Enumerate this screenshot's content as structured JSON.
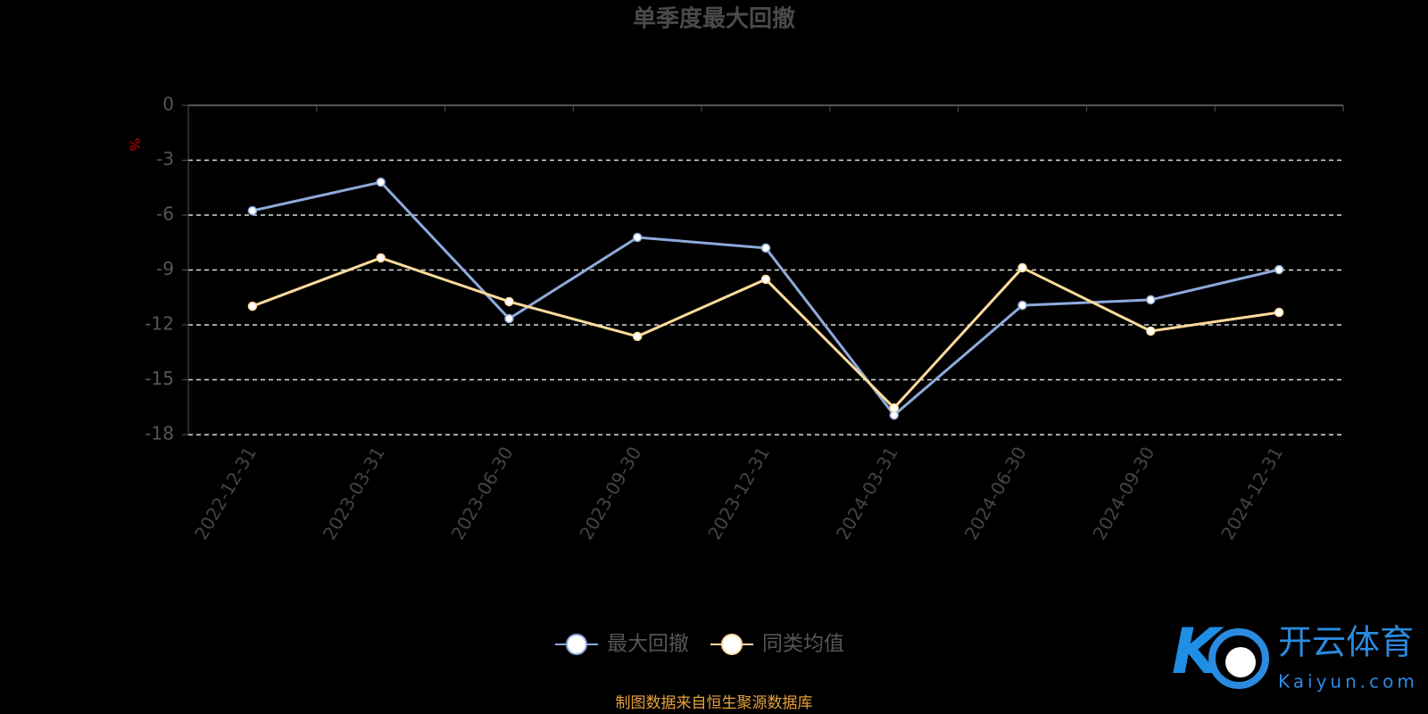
{
  "chart_data": {
    "type": "line",
    "title": "单季度最大回撤",
    "y_label": "%",
    "categories": [
      "2022-12-31",
      "2023-03-31",
      "2023-06-30",
      "2023-09-30",
      "2023-12-31",
      "2024-03-31",
      "2024-06-30",
      "2024-09-30",
      "2024-12-31"
    ],
    "series": [
      {
        "name": "最大回撤",
        "color": "#8eaadb",
        "values": [
          -5.76,
          -4.2,
          -11.66,
          -7.22,
          -7.8,
          -16.93,
          -10.93,
          -10.63,
          -8.98
        ]
      },
      {
        "name": "同类均值",
        "color": "#ffdb9c",
        "values": [
          -10.98,
          -8.34,
          -10.73,
          -12.63,
          -9.51,
          -16.54,
          -8.88,
          -12.34,
          -11.32
        ]
      }
    ],
    "ylim": [
      -18,
      0
    ],
    "yticks": [
      0,
      -3,
      -6,
      -9,
      -12,
      -15,
      -18
    ],
    "grid": true,
    "legend": "bottom",
    "source": "制图数据来自恒生聚源数据库"
  },
  "watermark": {
    "brand": "开云体育",
    "site": "Kaiyun.com"
  }
}
